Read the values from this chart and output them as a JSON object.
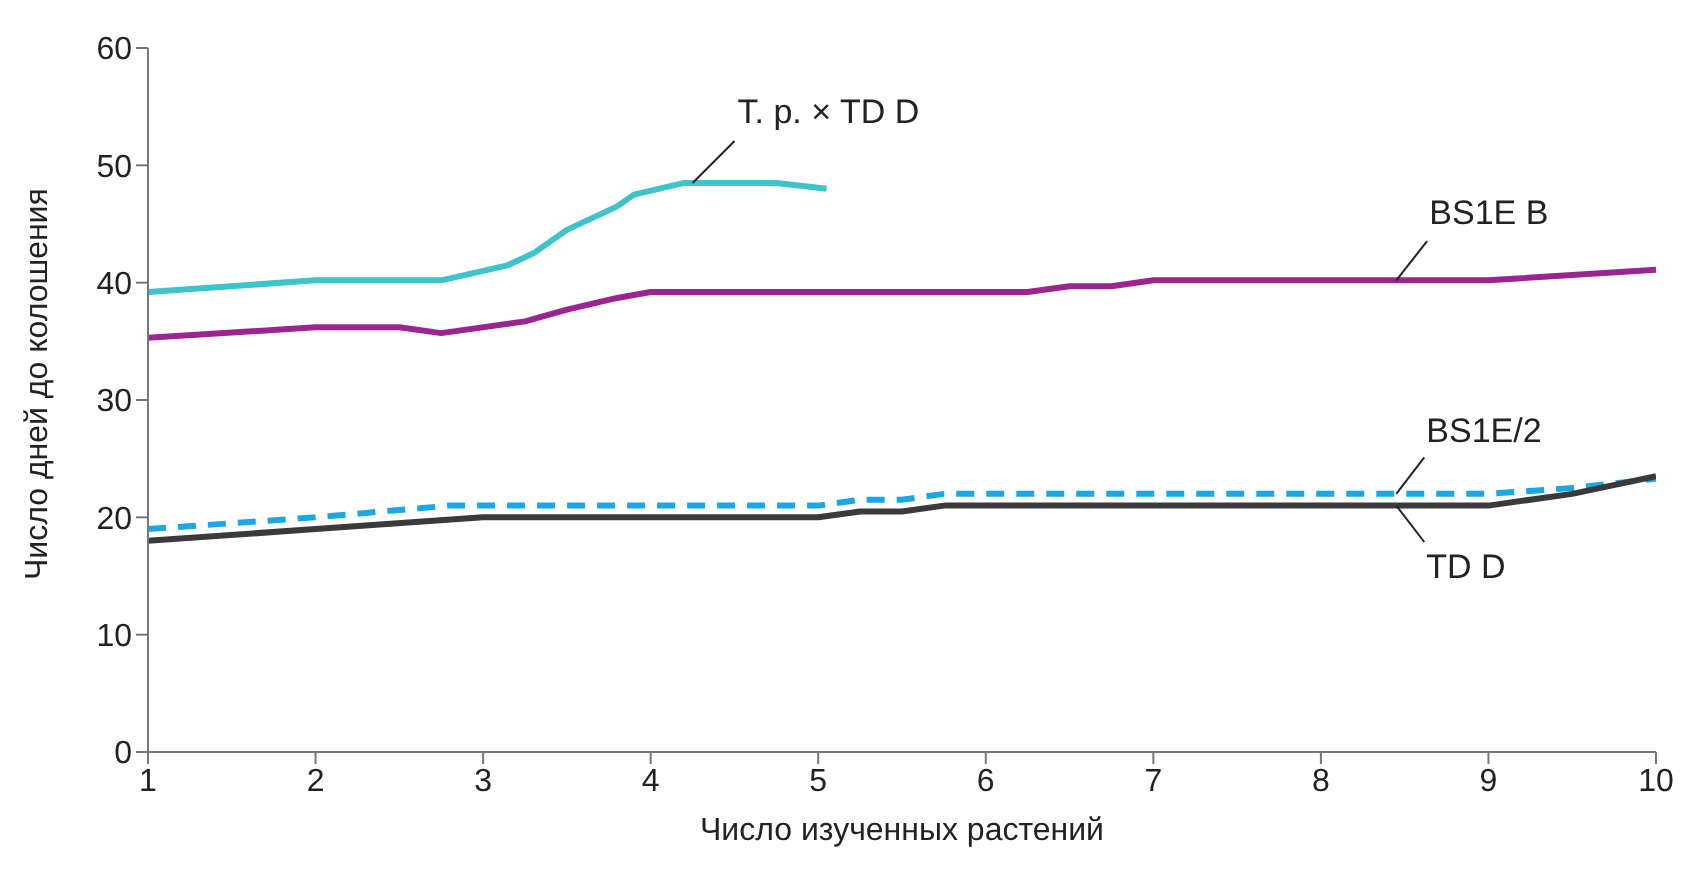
{
  "chart_data": {
    "type": "line",
    "xlabel": "Число изученных растений",
    "ylabel": "Число дней до колошения",
    "xlim": [
      1,
      10
    ],
    "xticks": [
      1,
      2,
      3,
      4,
      5,
      6,
      7,
      8,
      9,
      10
    ],
    "ylim": [
      0,
      60
    ],
    "yticks": [
      0,
      10,
      20,
      30,
      40,
      50,
      60
    ],
    "grid": false,
    "legend": false,
    "marker": "none",
    "series": [
      {
        "name": "T. p. × TD D",
        "color": "#3cc3cc",
        "line_style": "solid",
        "x": [
          1,
          2,
          2.75,
          3,
          3.15,
          3.3,
          3.5,
          3.8,
          3.9,
          4.2,
          4.75,
          5.05
        ],
        "values": [
          39.2,
          40.2,
          40.2,
          41,
          41.5,
          42.5,
          44.5,
          46.5,
          47.5,
          48.5,
          48.5,
          48
        ]
      },
      {
        "name": "BS1E B",
        "color": "#9b2491",
        "line_style": "solid",
        "x": [
          1,
          2,
          2.5,
          2.75,
          3.25,
          3.5,
          3.8,
          4,
          6.25,
          6.5,
          6.75,
          7,
          9,
          10
        ],
        "values": [
          35.3,
          36.2,
          36.2,
          35.7,
          36.7,
          37.7,
          38.7,
          39.2,
          39.2,
          39.7,
          39.7,
          40.2,
          40.2,
          41.1
        ]
      },
      {
        "name": "BS1E/2",
        "color": "#1aa7e8",
        "line_style": "dashed",
        "x": [
          1,
          2,
          2.8,
          5,
          5.25,
          5.5,
          5.75,
          9,
          9.5,
          10
        ],
        "values": [
          19,
          20,
          21,
          21,
          21.5,
          21.5,
          22,
          22,
          22.5,
          23.3
        ]
      },
      {
        "name": "TD D",
        "color": "#3a3a3a",
        "line_style": "solid",
        "x": [
          1,
          2,
          3,
          5,
          5.25,
          5.5,
          5.75,
          9,
          9.5,
          10
        ],
        "values": [
          18,
          19,
          20,
          20,
          20.5,
          20.5,
          21,
          21,
          22,
          23.5
        ]
      }
    ]
  }
}
